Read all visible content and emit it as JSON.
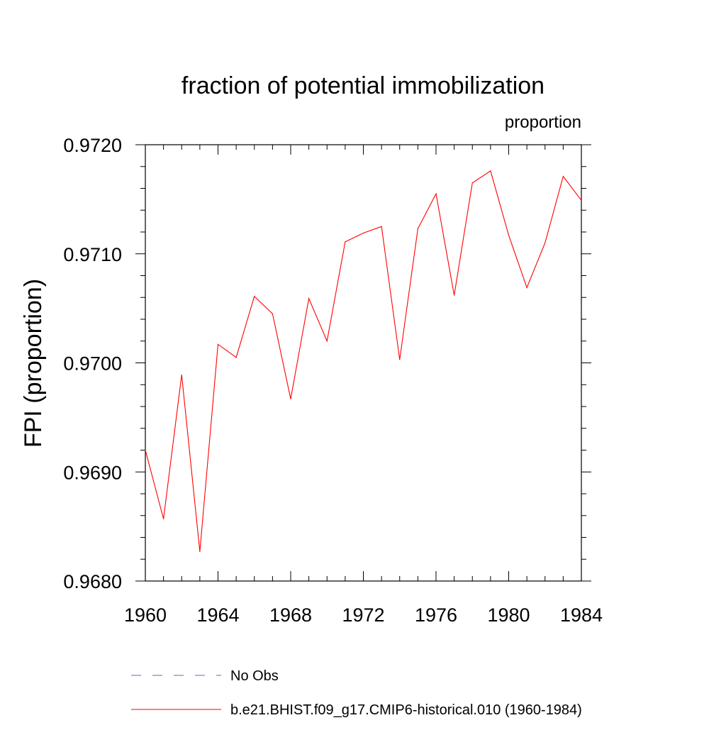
{
  "chart_data": {
    "type": "line",
    "title": "fraction of potential immobilization",
    "subtitle": "proportion",
    "ylabel": "FPI  (proportion)",
    "xlabel": "",
    "xlim": [
      1960,
      1984
    ],
    "ylim": [
      0.968,
      0.972
    ],
    "x_ticks": [
      1960,
      1964,
      1968,
      1972,
      1976,
      1980,
      1984
    ],
    "y_ticks": [
      "0.9680",
      "0.9690",
      "0.9700",
      "0.9710",
      "0.9720"
    ],
    "y_tick_values": [
      0.968,
      0.969,
      0.97,
      0.971,
      0.972
    ],
    "grid": false,
    "legend_position": "bottom",
    "series": [
      {
        "name": "b.e21.BHIST.f09_g17.CMIP6-historical.010 (1960-1984)",
        "color": "#ff0000",
        "style": "solid",
        "x": [
          1960,
          1961,
          1962,
          1963,
          1964,
          1965,
          1966,
          1967,
          1968,
          1969,
          1970,
          1971,
          1972,
          1973,
          1974,
          1975,
          1976,
          1977,
          1978,
          1979,
          1980,
          1981,
          1982,
          1983,
          1984
        ],
        "values": [
          0.9692,
          0.96857,
          0.96989,
          0.96827,
          0.97017,
          0.97005,
          0.97061,
          0.97045,
          0.96967,
          0.97059,
          0.9702,
          0.97111,
          0.97119,
          0.97125,
          0.97003,
          0.97123,
          0.97155,
          0.97062,
          0.97165,
          0.97176,
          0.97117,
          0.97069,
          0.9711,
          0.97171,
          0.97149
        ]
      }
    ],
    "legend": [
      {
        "label": "No Obs",
        "color": "#6a6ab0",
        "style": "dashed"
      },
      {
        "label": "b.e21.BHIST.f09_g17.CMIP6-historical.010 (1960-1984)",
        "color": "#ff0000",
        "style": "solid"
      }
    ]
  }
}
